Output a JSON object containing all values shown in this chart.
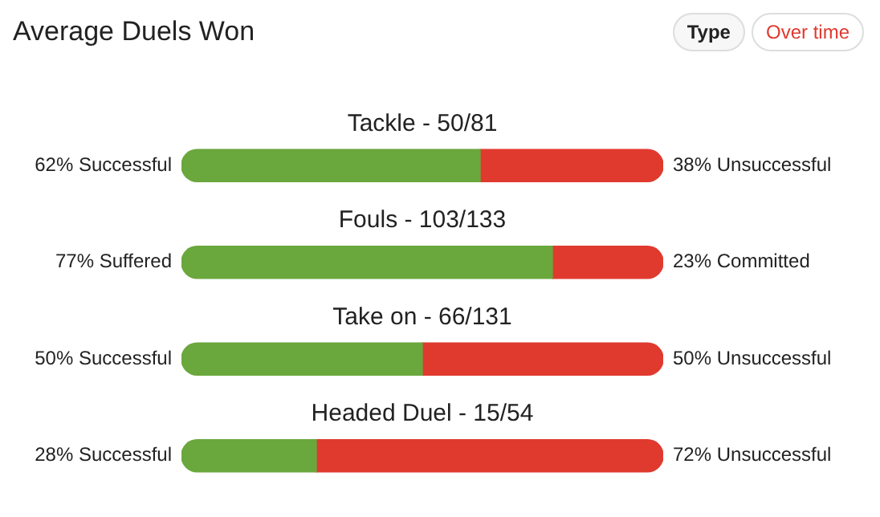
{
  "chart_data": {
    "type": "bar",
    "orientation": "horizontal",
    "stacked": true,
    "title": "Average Duels Won",
    "annotations": [
      "Type",
      "Over time"
    ],
    "categories": [
      "Tackle - 50/81",
      "Fouls - 103/133",
      "Take on - 66/131",
      "Headed Duel - 15/54"
    ],
    "series": [
      {
        "color": "#6aa73c",
        "values": [
          62,
          77,
          50,
          28
        ],
        "value_labels": [
          "62% Successful",
          "77% Suffered",
          "50% Successful",
          "28% Successful"
        ]
      },
      {
        "color": "#e03a2f",
        "values": [
          38,
          23,
          50,
          72
        ],
        "value_labels": [
          "38% Unsuccessful",
          "23% Committed",
          "50% Unsuccessful",
          "72% Unsuccessful"
        ]
      }
    ],
    "xlim": [
      0,
      100
    ],
    "tick_labels": false,
    "grid": false,
    "legend": false
  }
}
